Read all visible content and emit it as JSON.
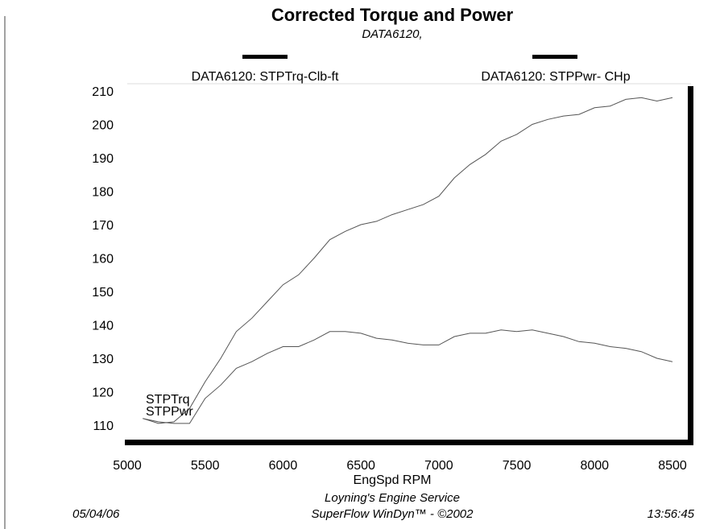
{
  "chart_data": {
    "type": "line",
    "title": "Corrected Torque and Power",
    "subtitle": "DATA6120,",
    "xlabel": "EngSpd  RPM",
    "ylabel": "",
    "xlim": [
      5000,
      8500
    ],
    "ylim": [
      105,
      212
    ],
    "xticks": [
      "5000",
      "5500",
      "6000",
      "6500",
      "7000",
      "7500",
      "8000",
      "8500"
    ],
    "yticks": [
      "210",
      "200",
      "190",
      "180",
      "170",
      "160",
      "150",
      "140",
      "130",
      "120",
      "110"
    ],
    "grid": false,
    "legend_placement": "top",
    "x": [
      5100,
      5200,
      5300,
      5400,
      5500,
      5600,
      5700,
      5800,
      5900,
      6000,
      6100,
      6200,
      6300,
      6400,
      6500,
      6600,
      6700,
      6800,
      6900,
      7000,
      7100,
      7200,
      7300,
      7400,
      7500,
      7600,
      7700,
      7800,
      7900,
      8000,
      8100,
      8200,
      8300,
      8400,
      8500
    ],
    "series": [
      {
        "name": "DATA6120: STPTrq-Clb-ft",
        "tag": "STPTrq",
        "color": "#555555",
        "values": [
          112,
          111,
          110.5,
          110.5,
          118,
          122,
          127,
          129,
          131.5,
          133.5,
          133.5,
          135.5,
          138,
          138,
          137.5,
          136,
          135.5,
          134.5,
          134,
          134,
          136.5,
          137.5,
          137.5,
          138.5,
          138,
          138.5,
          137.5,
          136.5,
          135,
          134.5,
          133.5,
          133,
          132,
          130,
          129
        ]
      },
      {
        "name": "DATA6120: STPPwr- CHp",
        "tag": "STPPwr",
        "color": "#555555",
        "values": [
          112,
          110.5,
          111,
          115,
          123,
          130,
          138,
          142,
          147,
          152,
          155,
          160,
          165.5,
          168,
          170,
          171,
          173,
          174.5,
          176,
          178.5,
          184,
          188,
          191,
          195,
          197,
          200,
          201.5,
          202.5,
          203,
          205,
          205.5,
          207.5,
          208,
          207,
          208
        ]
      }
    ]
  },
  "footer": {
    "company": "Loyning's Engine Service",
    "software": "SuperFlow WinDyn™ - ©2002",
    "date": "05/04/06",
    "time": "13:56:45"
  }
}
